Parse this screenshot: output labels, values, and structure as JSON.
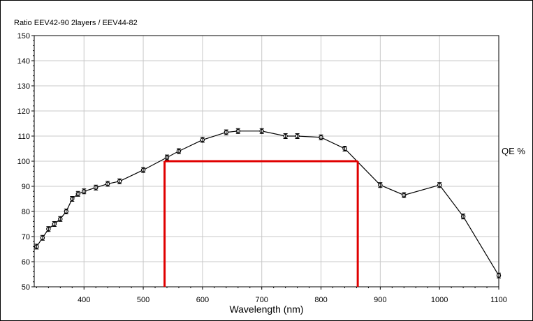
{
  "chart_data": {
    "type": "line",
    "title": "Ratio EEV42-90 2layers / EEV44-82",
    "xlabel": "Wavelength (nm)",
    "ylabel": "QE %",
    "xlim": [
      316,
      1100
    ],
    "ylim": [
      50,
      150
    ],
    "xticks": [
      400,
      500,
      600,
      700,
      800,
      900,
      1000,
      1100
    ],
    "yticks": [
      50,
      60,
      70,
      80,
      90,
      100,
      110,
      120,
      130,
      140,
      150
    ],
    "grid": true,
    "series": [
      {
        "color": "#000000",
        "x": [
          320,
          330,
          340,
          350,
          360,
          370,
          380,
          390,
          400,
          420,
          440,
          460,
          500,
          540,
          560,
          600,
          640,
          660,
          700,
          740,
          760,
          800,
          840,
          900,
          940,
          1000,
          1040,
          1100
        ],
        "y": [
          66,
          69.5,
          73,
          75,
          77,
          80,
          85,
          87,
          88,
          89.5,
          91,
          92,
          96.5,
          101.5,
          104,
          108.5,
          111.5,
          112,
          112,
          110,
          110,
          109.5,
          105,
          90.5,
          86.5,
          90.5,
          78,
          54.5
        ]
      }
    ],
    "annotations": {
      "red_line_color": "#e00000",
      "red_box": {
        "x_start": 536,
        "x_end": 862,
        "y_level": 100
      }
    }
  }
}
